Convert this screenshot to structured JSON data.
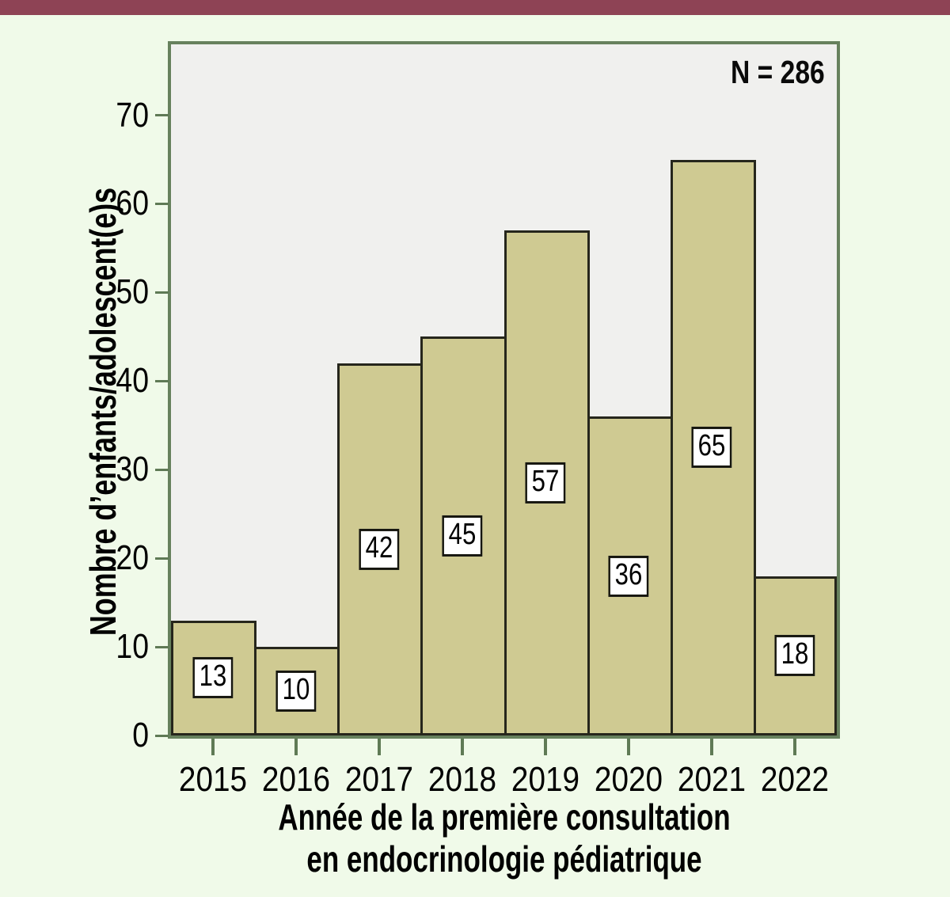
{
  "page": {
    "top_bar_color": "#8e4355",
    "background_color": "#f0fae9"
  },
  "chart_data": {
    "type": "bar",
    "annotation": "N = 286",
    "categories": [
      "2015",
      "2016",
      "2017",
      "2018",
      "2019",
      "2020",
      "2021",
      "2022"
    ],
    "values": [
      13,
      10,
      42,
      45,
      57,
      36,
      65,
      18
    ],
    "bar_value_labels": [
      "13",
      "10",
      "42",
      "45",
      "57",
      "36",
      "65",
      "18"
    ],
    "xlabel_line1": "Année de la première consultation",
    "xlabel_line2": "en endocrinologie pédiatrique",
    "ylabel": "Nombre d’enfants/adolescent(e)s",
    "yticks": [
      0,
      10,
      20,
      30,
      40,
      50,
      60,
      70
    ],
    "ylim": [
      0,
      78
    ],
    "grid": false,
    "legend": "none",
    "colors": {
      "bar_fill": "#cfca92",
      "bar_stroke": "#26261c",
      "plot_background": "#f0f0ee",
      "plot_border": "#67815d",
      "tick_color": "#5f7a55",
      "text_color": "#000000"
    }
  }
}
